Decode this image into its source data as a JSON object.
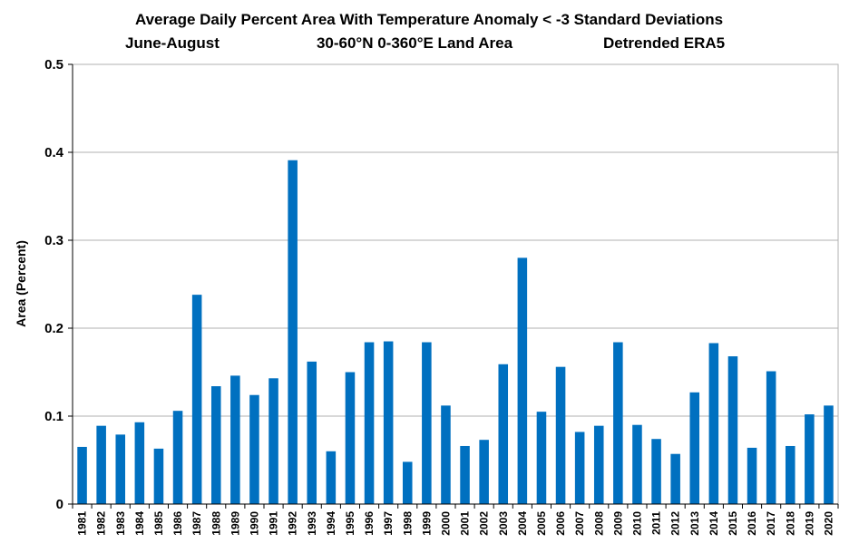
{
  "chart_data": {
    "type": "bar",
    "title": "Average Daily Percent Area With Temperature Anomaly < -3 Standard Deviations",
    "subtitle_parts": [
      "June-August",
      "30-60°N  0-360°E  Land Area",
      "Detrended ERA5"
    ],
    "xlabel": "",
    "ylabel": "Area (Percent)",
    "ylim": [
      0,
      0.5
    ],
    "yticks": [
      0,
      0.1,
      0.2,
      0.3,
      0.4,
      0.5
    ],
    "ytick_labels": [
      "0",
      "0.1",
      "0.2",
      "0.3",
      "0.4",
      "0.5"
    ],
    "grid": true,
    "legend": "none",
    "bar_color": "#0070C0",
    "grid_color": "#b0b0b0",
    "categories": [
      "1981",
      "1982",
      "1983",
      "1984",
      "1985",
      "1986",
      "1987",
      "1988",
      "1989",
      "1990",
      "1991",
      "1992",
      "1993",
      "1994",
      "1995",
      "1996",
      "1997",
      "1998",
      "1999",
      "2000",
      "2001",
      "2002",
      "2003",
      "2004",
      "2005",
      "2006",
      "2007",
      "2008",
      "2009",
      "2010",
      "2011",
      "2012",
      "2013",
      "2014",
      "2015",
      "2016",
      "2017",
      "2018",
      "2019",
      "2020"
    ],
    "values": [
      0.065,
      0.089,
      0.079,
      0.093,
      0.063,
      0.106,
      0.238,
      0.134,
      0.146,
      0.124,
      0.143,
      0.391,
      0.162,
      0.06,
      0.15,
      0.184,
      0.185,
      0.048,
      0.184,
      0.112,
      0.066,
      0.073,
      0.159,
      0.28,
      0.105,
      0.156,
      0.082,
      0.089,
      0.184,
      0.09,
      0.074,
      0.057,
      0.127,
      0.183,
      0.168,
      0.064,
      0.151,
      0.066,
      0.102,
      0.112
    ]
  }
}
